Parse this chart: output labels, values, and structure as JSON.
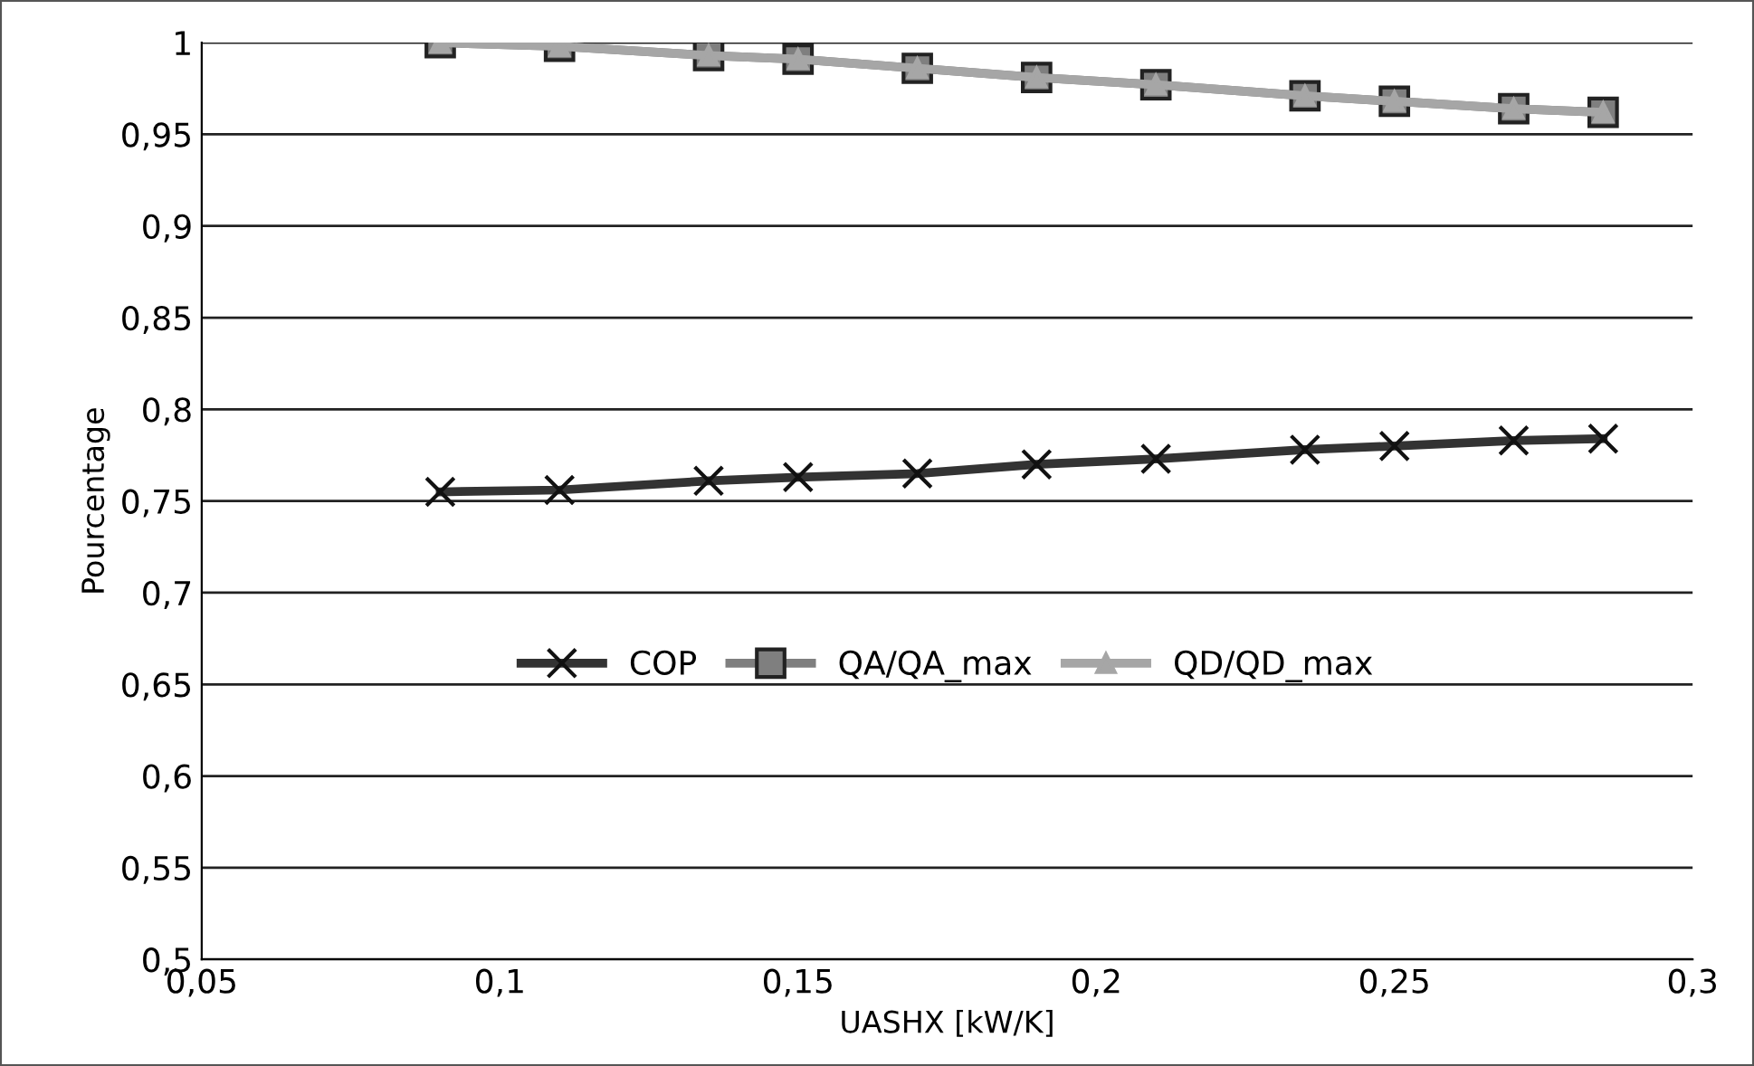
{
  "chart_data": {
    "type": "line",
    "xlabel": "UASHX [kW/K]",
    "ylabel": "Pourcentage",
    "x": [
      0.09,
      0.11,
      0.135,
      0.15,
      0.17,
      0.19,
      0.21,
      0.235,
      0.25,
      0.27,
      0.285
    ],
    "series": [
      {
        "name": "COP",
        "color": "#333333",
        "marker": "cross",
        "values": [
          0.755,
          0.756,
          0.761,
          0.763,
          0.765,
          0.77,
          0.773,
          0.778,
          0.78,
          0.783,
          0.784
        ]
      },
      {
        "name": "QA/QA_max",
        "color": "#7f7f7f",
        "marker": "square",
        "values": [
          1.0,
          0.998,
          0.993,
          0.991,
          0.986,
          0.981,
          0.977,
          0.971,
          0.968,
          0.964,
          0.962
        ]
      },
      {
        "name": "QD/QD_max",
        "color": "#a6a6a6",
        "marker": "triangle",
        "values": [
          1.0,
          0.998,
          0.993,
          0.991,
          0.986,
          0.981,
          0.977,
          0.971,
          0.968,
          0.964,
          0.962
        ]
      }
    ],
    "xlim": [
      0.05,
      0.3
    ],
    "xticks": [
      {
        "value": 0.05,
        "label": "0,05"
      },
      {
        "value": 0.1,
        "label": "0,1"
      },
      {
        "value": 0.15,
        "label": "0,15"
      },
      {
        "value": 0.2,
        "label": "0,2"
      },
      {
        "value": 0.25,
        "label": "0,25"
      },
      {
        "value": 0.3,
        "label": "0,3"
      }
    ],
    "ylim": [
      0.5,
      1
    ],
    "yticks": [
      {
        "value": 0.5,
        "label": "0,5"
      },
      {
        "value": 0.55,
        "label": "0,55"
      },
      {
        "value": 0.6,
        "label": "0,6"
      },
      {
        "value": 0.65,
        "label": "0,65"
      },
      {
        "value": 0.7,
        "label": "0,7"
      },
      {
        "value": 0.75,
        "label": "0,75"
      },
      {
        "value": 0.8,
        "label": "0,8"
      },
      {
        "value": 0.85,
        "label": "0,85"
      },
      {
        "value": 0.9,
        "label": "0,9"
      },
      {
        "value": 0.95,
        "label": "0,95"
      },
      {
        "value": 1,
        "label": "1"
      }
    ],
    "grid": "y",
    "legend": "center",
    "line_style": "solid"
  }
}
